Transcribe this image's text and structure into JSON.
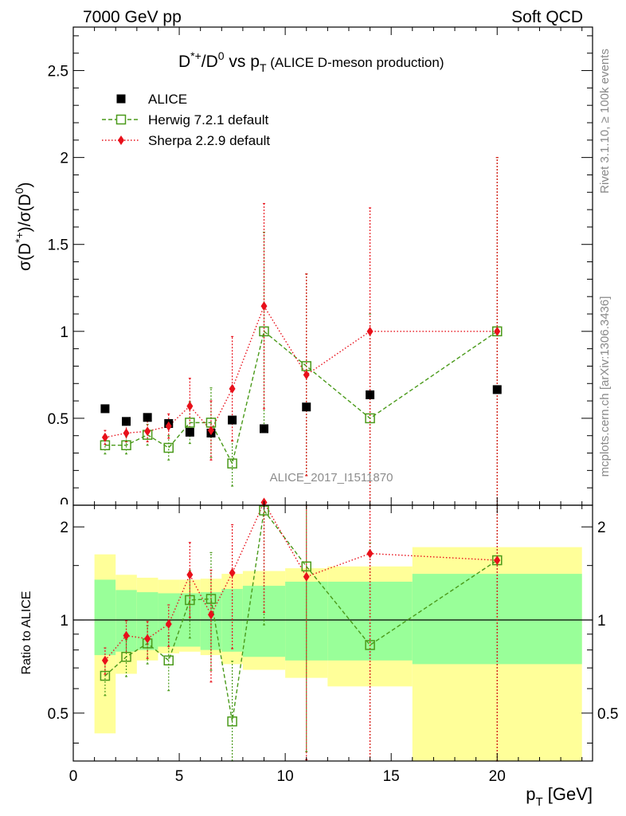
{
  "header": {
    "left": "7000 GeV pp",
    "right": "Soft QCD"
  },
  "side_labels": {
    "rivet": "Rivet 3.1.10, ≥ 100k events",
    "mcplots": "mcplots.cern.ch [arXiv:1306.3436]"
  },
  "chart_data": {
    "type": "scatter",
    "title_main": "D*+/D0 vs pT",
    "title_sub": "(ALICE D-meson production)",
    "analysis_id": "ALICE_2017_I1511870",
    "ylabel_main": "σ(D*+)/σ(D0)",
    "ylabel_ratio": "Ratio to ALICE",
    "xlabel": "pT [GeV]",
    "xlim": [
      0,
      24.5
    ],
    "ylim_main": [
      0,
      2.75
    ],
    "ylim_ratio": [
      0.35,
      2.35
    ],
    "ratio_log_scale": true,
    "xticks": [
      0,
      5,
      10,
      15,
      20
    ],
    "yticks_main": [
      0.5,
      1,
      1.5,
      2,
      2.5
    ],
    "yticks_main_visible_labels": [
      "0.5",
      "1",
      "1.5",
      "2",
      "2.5"
    ],
    "yticks_ratio": [
      0.5,
      1,
      2
    ],
    "legend_position": "top-left",
    "colors": {
      "alice": "#000000",
      "herwig": "#4a9a1a",
      "sherpa": "#e8101a",
      "band_green": "#99ff99",
      "band_yellow": "#ffff99"
    },
    "bins": [
      [
        1,
        2
      ],
      [
        2,
        3
      ],
      [
        3,
        4
      ],
      [
        4,
        5
      ],
      [
        5,
        6
      ],
      [
        6,
        7
      ],
      [
        7,
        8
      ],
      [
        8,
        10
      ],
      [
        10,
        12
      ],
      [
        12,
        16
      ],
      [
        16,
        24
      ]
    ],
    "x": [
      1.5,
      2.5,
      3.5,
      4.5,
      5.5,
      6.5,
      7.5,
      9,
      11,
      14,
      20
    ],
    "series": [
      {
        "name": "ALICE",
        "values": [
          0.555,
          0.482,
          0.505,
          0.47,
          0.42,
          0.415,
          0.49,
          0.44,
          0.565,
          0.635,
          0.665
        ],
        "band_green_hi": [
          1.35,
          1.25,
          1.23,
          1.22,
          1.22,
          1.23,
          1.26,
          1.29,
          1.33,
          1.33,
          1.41
        ],
        "band_green_lo": [
          0.77,
          0.79,
          0.8,
          0.82,
          0.82,
          0.8,
          0.79,
          0.76,
          0.74,
          0.74,
          0.72
        ],
        "band_yellow_hi": [
          1.63,
          1.4,
          1.37,
          1.35,
          1.35,
          1.36,
          1.41,
          1.44,
          1.47,
          1.49,
          1.72
        ],
        "band_yellow_lo": [
          0.43,
          0.67,
          0.74,
          0.78,
          0.79,
          0.77,
          0.72,
          0.69,
          0.65,
          0.61,
          0.35
        ]
      },
      {
        "name": "Herwig 7.2.1 default",
        "values": [
          0.345,
          0.345,
          0.405,
          0.33,
          0.475,
          0.475,
          0.24,
          1.0,
          0.8,
          0.5,
          1.0
        ],
        "err_lo": [
          0.05,
          0.05,
          0.06,
          0.07,
          0.12,
          0.2,
          0.13,
          0.57,
          0.63,
          0.5,
          1.0
        ],
        "err_hi": [
          0.05,
          0.05,
          0.06,
          0.07,
          0.12,
          0.2,
          0.13,
          0.57,
          0.53,
          0.6,
          1.0
        ],
        "ratio": [
          0.66,
          0.76,
          0.84,
          0.74,
          1.16,
          1.17,
          0.47,
          2.26,
          1.49,
          0.83,
          1.56
        ]
      },
      {
        "name": "Sherpa 2.2.9 default",
        "values": [
          0.39,
          0.415,
          0.425,
          0.455,
          0.57,
          0.43,
          0.67,
          1.145,
          0.75,
          1.0,
          1.0
        ],
        "err_lo": [
          0.04,
          0.05,
          0.06,
          0.07,
          0.16,
          0.17,
          0.3,
          0.59,
          0.58,
          1.0,
          1.0
        ],
        "err_hi": [
          0.04,
          0.05,
          0.06,
          0.07,
          0.16,
          0.17,
          0.3,
          0.59,
          0.58,
          0.71,
          1.0
        ],
        "ratio": [
          0.74,
          0.89,
          0.87,
          0.97,
          1.4,
          1.04,
          1.42,
          2.4,
          1.38,
          1.64,
          1.56
        ]
      }
    ]
  }
}
